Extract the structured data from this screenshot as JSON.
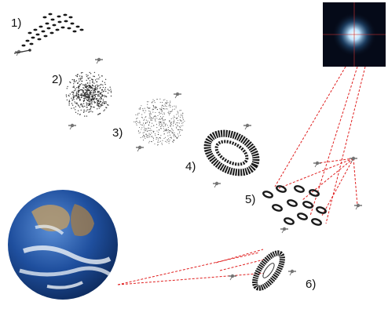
{
  "steps": [
    {
      "label": "1)"
    },
    {
      "label": "2)"
    },
    {
      "label": "3)"
    },
    {
      "label": "4)"
    },
    {
      "label": "5)"
    },
    {
      "label": "6)"
    }
  ],
  "colors": {
    "background": "#ffffff",
    "beam": "#e02020",
    "particles": "#1a1a1a",
    "space": "#050a18",
    "ocean": "#1f4f9e",
    "clouds": "#eef3f8",
    "star": "#bfe4ff"
  },
  "icons": {
    "earth": "earth-globe",
    "telescope": "astronomical-source-image",
    "satellite": "spacecraft-icon"
  }
}
